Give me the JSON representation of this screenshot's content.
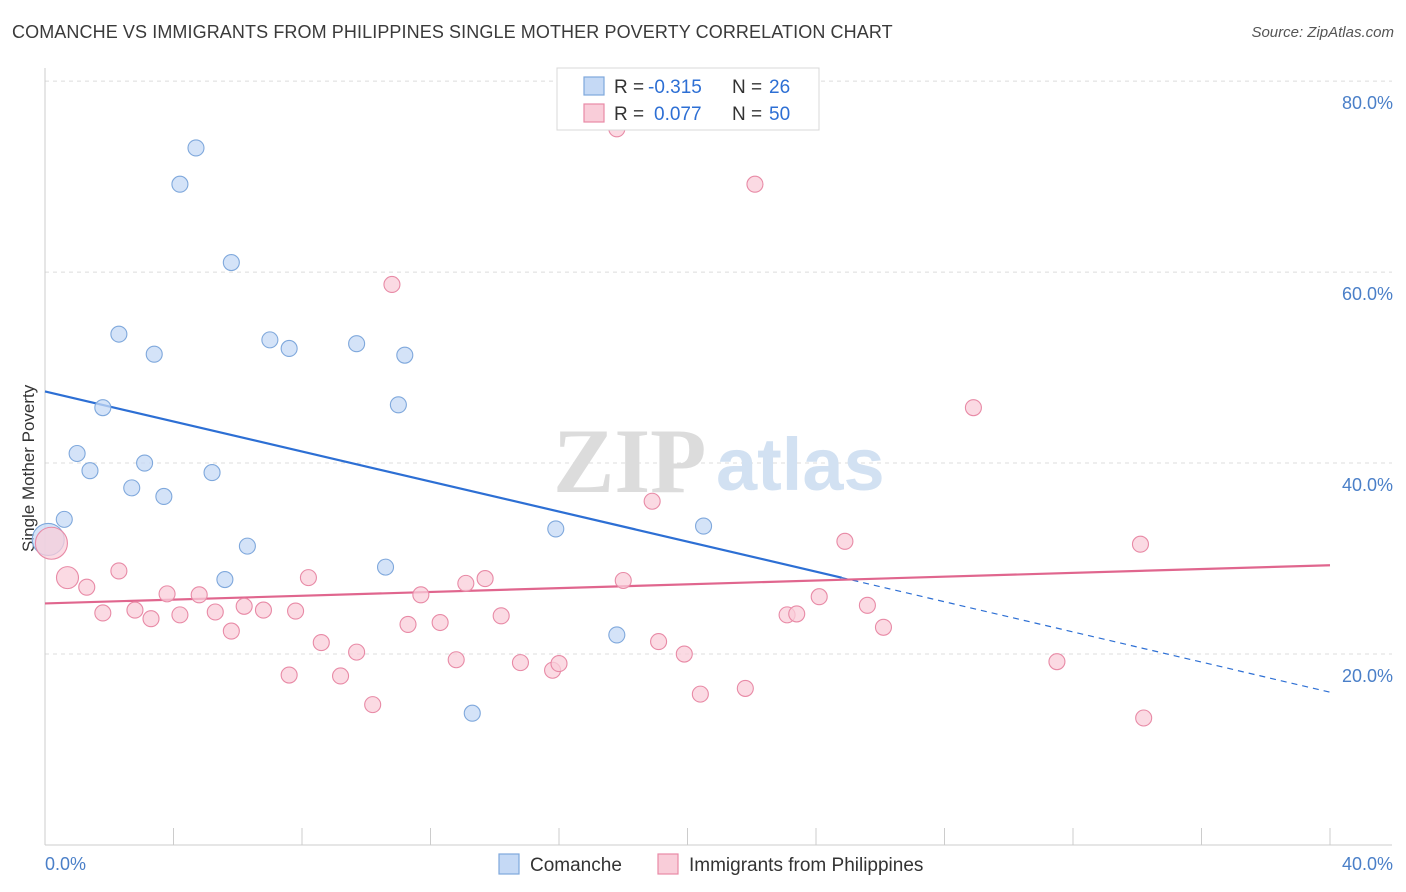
{
  "title": "COMANCHE VS IMMIGRANTS FROM PHILIPPINES SINGLE MOTHER POVERTY CORRELATION CHART",
  "source": "Source: ZipAtlas.com",
  "watermark": {
    "zip": "ZIP",
    "atlas": "atlas"
  },
  "colors": {
    "blue_fill": "#c5d9f5",
    "blue_stroke": "#7fa8dc",
    "blue_line": "#2d6fd4",
    "pink_fill": "#f9cdd9",
    "pink_stroke": "#e88aa6",
    "pink_line": "#e0668e",
    "tick_text": "#4a7fc8",
    "grid": "#dcdcdc"
  },
  "legend_stats": {
    "r_label": "R =",
    "n_label": "N =",
    "comanche": {
      "r": "-0.315",
      "n": "26"
    },
    "philippines": {
      "r": "0.077",
      "n": "50"
    }
  },
  "bottom_legend": {
    "comanche": "Comanche",
    "philippines": "Immigrants from Philippines"
  },
  "chart_data": {
    "type": "scatter",
    "title": "COMANCHE VS IMMIGRANTS FROM PHILIPPINES SINGLE MOTHER POVERTY CORRELATION CHART",
    "xlabel": "",
    "ylabel": "Single Mother Poverty",
    "xlim": [
      0,
      40
    ],
    "ylim": [
      0,
      82
    ],
    "x_tick_labels": [
      "0.0%",
      "40.0%"
    ],
    "y_ticks": [
      20,
      40,
      60,
      80
    ],
    "y_tick_labels": [
      "20.0%",
      "40.0%",
      "60.0%",
      "80.0%"
    ],
    "grid": true,
    "legend_position": "top-center",
    "series": [
      {
        "name": "Comanche",
        "r": -0.315,
        "n": 26,
        "points": [
          [
            4.7,
            73.0
          ],
          [
            4.2,
            69.2
          ],
          [
            5.8,
            61.0
          ],
          [
            2.3,
            53.5
          ],
          [
            3.4,
            51.4
          ],
          [
            7.0,
            52.9
          ],
          [
            7.6,
            52.0
          ],
          [
            9.7,
            52.5
          ],
          [
            11.2,
            51.3
          ],
          [
            1.8,
            45.8
          ],
          [
            11.0,
            46.1
          ],
          [
            1.0,
            41.0
          ],
          [
            1.4,
            39.2
          ],
          [
            3.1,
            40.0
          ],
          [
            5.2,
            39.0
          ],
          [
            2.7,
            37.4
          ],
          [
            3.7,
            36.5
          ],
          [
            0.6,
            34.1
          ],
          [
            0.1,
            32.0
          ],
          [
            6.3,
            31.3
          ],
          [
            10.6,
            29.1
          ],
          [
            5.6,
            27.8
          ],
          [
            15.9,
            33.1
          ],
          [
            20.5,
            33.4
          ],
          [
            17.8,
            22.0
          ],
          [
            13.3,
            13.8
          ]
        ],
        "trend": {
          "x": [
            0,
            24.8
          ],
          "y": [
            47.5,
            28.0
          ]
        },
        "trend_dashed": {
          "x": [
            24.8,
            40
          ],
          "y": [
            28.0,
            16.0
          ]
        }
      },
      {
        "name": "Immigrants from Philippines",
        "r": 0.077,
        "n": 50,
        "points": [
          [
            0.2,
            31.6
          ],
          [
            0.7,
            28.0
          ],
          [
            1.3,
            27.0
          ],
          [
            2.3,
            28.7
          ],
          [
            1.8,
            24.3
          ],
          [
            2.8,
            24.6
          ],
          [
            3.3,
            23.7
          ],
          [
            3.8,
            26.3
          ],
          [
            4.2,
            24.1
          ],
          [
            4.8,
            26.2
          ],
          [
            5.3,
            24.4
          ],
          [
            5.8,
            22.4
          ],
          [
            6.2,
            25.0
          ],
          [
            6.8,
            24.6
          ],
          [
            7.6,
            17.8
          ],
          [
            7.8,
            24.5
          ],
          [
            8.2,
            28.0
          ],
          [
            8.6,
            21.2
          ],
          [
            9.2,
            17.7
          ],
          [
            9.7,
            20.2
          ],
          [
            10.2,
            14.7
          ],
          [
            10.8,
            58.7
          ],
          [
            11.3,
            23.1
          ],
          [
            11.7,
            26.2
          ],
          [
            12.3,
            23.3
          ],
          [
            12.8,
            19.4
          ],
          [
            13.1,
            27.4
          ],
          [
            13.7,
            27.9
          ],
          [
            14.2,
            24.0
          ],
          [
            14.8,
            19.1
          ],
          [
            15.8,
            18.3
          ],
          [
            16.0,
            19.0
          ],
          [
            17.8,
            75.0
          ],
          [
            18.0,
            27.7
          ],
          [
            18.9,
            36.0
          ],
          [
            19.1,
            21.3
          ],
          [
            19.9,
            20.0
          ],
          [
            20.4,
            15.8
          ],
          [
            21.8,
            16.4
          ],
          [
            22.1,
            69.2
          ],
          [
            23.1,
            24.1
          ],
          [
            24.1,
            26.0
          ],
          [
            24.9,
            31.8
          ],
          [
            25.6,
            25.1
          ],
          [
            26.1,
            22.8
          ],
          [
            28.9,
            45.8
          ],
          [
            31.5,
            19.2
          ],
          [
            34.1,
            31.5
          ],
          [
            34.2,
            13.3
          ],
          [
            23.4,
            24.2
          ]
        ],
        "trend": {
          "x": [
            0,
            40
          ],
          "y": [
            25.3,
            29.3
          ]
        }
      }
    ]
  }
}
